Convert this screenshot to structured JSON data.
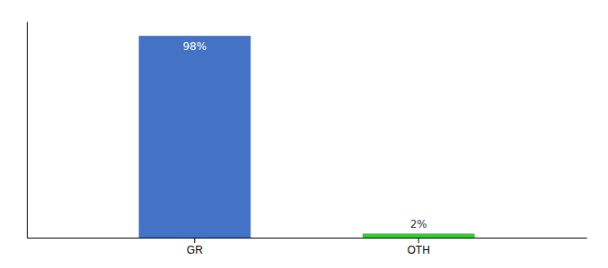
{
  "chart_data": {
    "type": "bar",
    "categories": [
      "GR",
      "OTH"
    ],
    "values": [
      98,
      2
    ],
    "value_labels": [
      "98%",
      "2%"
    ],
    "colors": [
      "#4472c4",
      "#33cc33"
    ],
    "ylim": [
      0,
      105
    ],
    "data_labels": true,
    "tick_labels": "x"
  }
}
